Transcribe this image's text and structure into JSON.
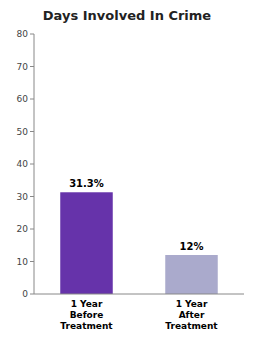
{
  "chart_data": {
    "type": "bar",
    "title": "Days Involved In Crime",
    "categories": [
      "1 Year\nBefore\nTreatment",
      "1 Year\nAfter\nTreatment"
    ],
    "values": [
      31.3,
      12.0
    ],
    "value_labels": [
      "31.3%",
      "12%"
    ],
    "data_labels": true,
    "colors": [
      "#6633aa",
      "#aaaacc"
    ],
    "ylim": [
      0,
      80
    ],
    "yticks": [
      0,
      10,
      20,
      30,
      40,
      50,
      60,
      70,
      80
    ],
    "grid": false
  }
}
